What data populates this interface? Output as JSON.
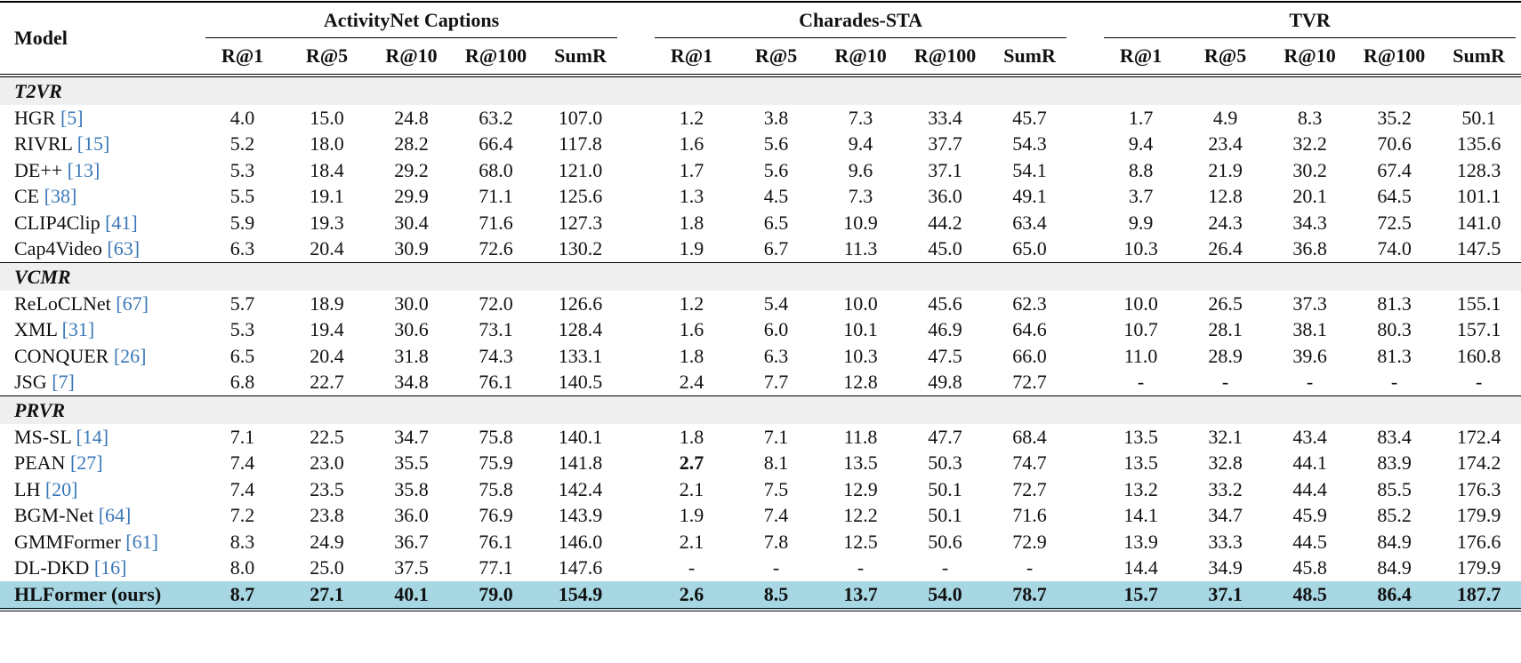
{
  "table": {
    "model_header": "Model",
    "groups": [
      {
        "name": "ActivityNet Captions",
        "metrics": [
          "R@1",
          "R@5",
          "R@10",
          "R@100",
          "SumR"
        ]
      },
      {
        "name": "Charades-STA",
        "metrics": [
          "R@1",
          "R@5",
          "R@10",
          "R@100",
          "SumR"
        ]
      },
      {
        "name": "TVR",
        "metrics": [
          "R@1",
          "R@5",
          "R@10",
          "R@100",
          "SumR"
        ]
      }
    ],
    "sections": [
      {
        "name": "T2VR",
        "rows": [
          {
            "model": "HGR",
            "ref": "[5]",
            "cells": [
              "4.0",
              "15.0",
              "24.8",
              "63.2",
              "107.0",
              "1.2",
              "3.8",
              "7.3",
              "33.4",
              "45.7",
              "1.7",
              "4.9",
              "8.3",
              "35.2",
              "50.1"
            ]
          },
          {
            "model": "RIVRL",
            "ref": "[15]",
            "cells": [
              "5.2",
              "18.0",
              "28.2",
              "66.4",
              "117.8",
              "1.6",
              "5.6",
              "9.4",
              "37.7",
              "54.3",
              "9.4",
              "23.4",
              "32.2",
              "70.6",
              "135.6"
            ]
          },
          {
            "model": "DE++",
            "ref": "[13]",
            "cells": [
              "5.3",
              "18.4",
              "29.2",
              "68.0",
              "121.0",
              "1.7",
              "5.6",
              "9.6",
              "37.1",
              "54.1",
              "8.8",
              "21.9",
              "30.2",
              "67.4",
              "128.3"
            ]
          },
          {
            "model": "CE",
            "ref": "[38]",
            "cells": [
              "5.5",
              "19.1",
              "29.9",
              "71.1",
              "125.6",
              "1.3",
              "4.5",
              "7.3",
              "36.0",
              "49.1",
              "3.7",
              "12.8",
              "20.1",
              "64.5",
              "101.1"
            ]
          },
          {
            "model": "CLIP4Clip",
            "ref": "[41]",
            "cells": [
              "5.9",
              "19.3",
              "30.4",
              "71.6",
              "127.3",
              "1.8",
              "6.5",
              "10.9",
              "44.2",
              "63.4",
              "9.9",
              "24.3",
              "34.3",
              "72.5",
              "141.0"
            ]
          },
          {
            "model": "Cap4Video",
            "ref": "[63]",
            "cells": [
              "6.3",
              "20.4",
              "30.9",
              "72.6",
              "130.2",
              "1.9",
              "6.7",
              "11.3",
              "45.0",
              "65.0",
              "10.3",
              "26.4",
              "36.8",
              "74.0",
              "147.5"
            ]
          }
        ]
      },
      {
        "name": "VCMR",
        "rows": [
          {
            "model": "ReLoCLNet",
            "ref": "[67]",
            "cells": [
              "5.7",
              "18.9",
              "30.0",
              "72.0",
              "126.6",
              "1.2",
              "5.4",
              "10.0",
              "45.6",
              "62.3",
              "10.0",
              "26.5",
              "37.3",
              "81.3",
              "155.1"
            ]
          },
          {
            "model": "XML",
            "ref": "[31]",
            "cells": [
              "5.3",
              "19.4",
              "30.6",
              "73.1",
              "128.4",
              "1.6",
              "6.0",
              "10.1",
              "46.9",
              "64.6",
              "10.7",
              "28.1",
              "38.1",
              "80.3",
              "157.1"
            ]
          },
          {
            "model": "CONQUER",
            "ref": "[26]",
            "cells": [
              "6.5",
              "20.4",
              "31.8",
              "74.3",
              "133.1",
              "1.8",
              "6.3",
              "10.3",
              "47.5",
              "66.0",
              "11.0",
              "28.9",
              "39.6",
              "81.3",
              "160.8"
            ]
          },
          {
            "model": "JSG",
            "ref": "[7]",
            "cells": [
              "6.8",
              "22.7",
              "34.8",
              "76.1",
              "140.5",
              "2.4",
              "7.7",
              "12.8",
              "49.8",
              "72.7",
              "-",
              "-",
              "-",
              "-",
              "-"
            ]
          }
        ]
      },
      {
        "name": "PRVR",
        "rows": [
          {
            "model": "MS-SL",
            "ref": "[14]",
            "cells": [
              "7.1",
              "22.5",
              "34.7",
              "75.8",
              "140.1",
              "1.8",
              "7.1",
              "11.8",
              "47.7",
              "68.4",
              "13.5",
              "32.1",
              "43.4",
              "83.4",
              "172.4"
            ]
          },
          {
            "model": "PEAN",
            "ref": "[27]",
            "cells": [
              "7.4",
              "23.0",
              "35.5",
              "75.9",
              "141.8",
              "2.7",
              "8.1",
              "13.5",
              "50.3",
              "74.7",
              "13.5",
              "32.8",
              "44.1",
              "83.9",
              "174.2"
            ],
            "bold_cells": [
              5
            ]
          },
          {
            "model": "LH",
            "ref": "[20]",
            "cells": [
              "7.4",
              "23.5",
              "35.8",
              "75.8",
              "142.4",
              "2.1",
              "7.5",
              "12.9",
              "50.1",
              "72.7",
              "13.2",
              "33.2",
              "44.4",
              "85.5",
              "176.3"
            ]
          },
          {
            "model": "BGM-Net",
            "ref": "[64]",
            "cells": [
              "7.2",
              "23.8",
              "36.0",
              "76.9",
              "143.9",
              "1.9",
              "7.4",
              "12.2",
              "50.1",
              "71.6",
              "14.1",
              "34.7",
              "45.9",
              "85.2",
              "179.9"
            ]
          },
          {
            "model": "GMMFormer",
            "ref": "[61]",
            "cells": [
              "8.3",
              "24.9",
              "36.7",
              "76.1",
              "146.0",
              "2.1",
              "7.8",
              "12.5",
              "50.6",
              "72.9",
              "13.9",
              "33.3",
              "44.5",
              "84.9",
              "176.6"
            ]
          },
          {
            "model": "DL-DKD",
            "ref": "[16]",
            "cells": [
              "8.0",
              "25.0",
              "37.5",
              "77.1",
              "147.6",
              "-",
              "-",
              "-",
              "-",
              "-",
              "14.4",
              "34.9",
              "45.8",
              "84.9",
              "179.9"
            ]
          },
          {
            "model": "HLFormer (ours)",
            "cells": [
              "8.7",
              "27.1",
              "40.1",
              "79.0",
              "154.9",
              "2.6",
              "8.5",
              "13.7",
              "54.0",
              "78.7",
              "15.7",
              "37.1",
              "48.5",
              "86.4",
              "187.7"
            ],
            "highlight": true
          }
        ]
      }
    ]
  }
}
